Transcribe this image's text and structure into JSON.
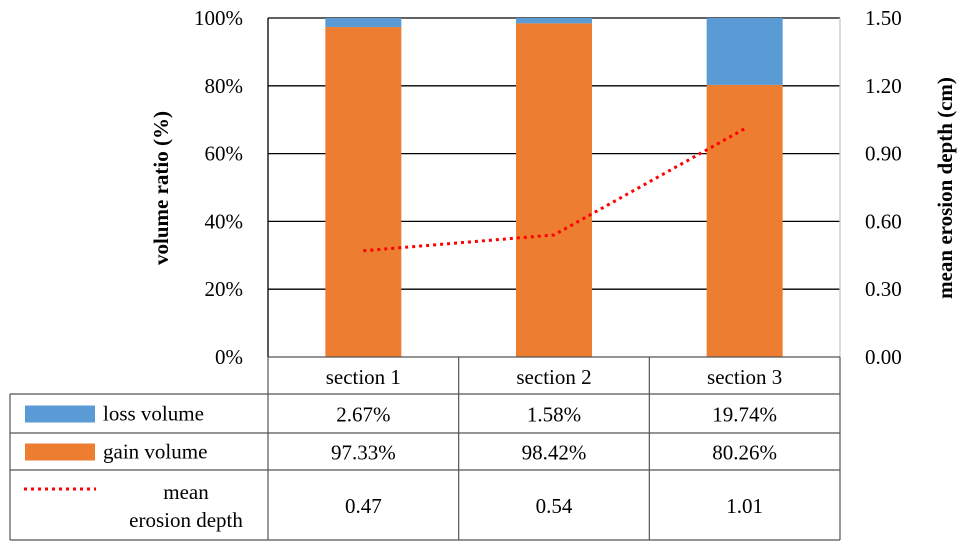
{
  "chart_data": {
    "type": "bar",
    "stacked": true,
    "categories": [
      "section 1",
      "section 2",
      "section 3"
    ],
    "series": [
      {
        "name": "gain volume",
        "values": [
          97.33,
          98.42,
          80.26
        ],
        "labels": [
          "97.33%",
          "98.42%",
          "80.26%"
        ],
        "color": "#ED7D31",
        "axis": "left"
      },
      {
        "name": "loss volume",
        "values": [
          2.67,
          1.58,
          19.74
        ],
        "labels": [
          "2.67%",
          "1.58%",
          "19.74%"
        ],
        "color": "#5B9BD5",
        "axis": "left"
      },
      {
        "name": "mean\nerosion depth",
        "type": "line",
        "style": "dotted",
        "values": [
          0.47,
          0.54,
          1.01
        ],
        "labels": [
          "0.47",
          "0.54",
          "1.01"
        ],
        "color": "#FF0000",
        "axis": "right"
      }
    ],
    "ylabel": "volume ratio (%)",
    "y2label": "mean erosion depth (cm)",
    "ylim": [
      0,
      100
    ],
    "y2lim": [
      0,
      1.5
    ],
    "yticks": [
      "0%",
      "20%",
      "40%",
      "60%",
      "80%",
      "100%"
    ],
    "y2ticks": [
      "0.00",
      "0.30",
      "0.60",
      "0.90",
      "1.20",
      "1.50"
    ],
    "grid": true,
    "legend": "data-table"
  }
}
